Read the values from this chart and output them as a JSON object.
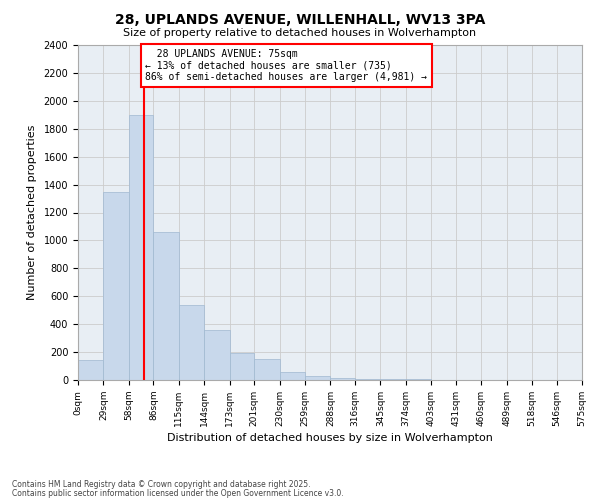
{
  "title": "28, UPLANDS AVENUE, WILLENHALL, WV13 3PA",
  "subtitle": "Size of property relative to detached houses in Wolverhampton",
  "xlabel": "Distribution of detached houses by size in Wolverhampton",
  "ylabel": "Number of detached properties",
  "bar_color": "#c8d8eb",
  "bar_edge_color": "#a0b8d0",
  "property_line_x": 75,
  "annotation_title": "28 UPLANDS AVENUE: 75sqm",
  "annotation_line1": "← 13% of detached houses are smaller (735)",
  "annotation_line2": "86% of semi-detached houses are larger (4,981) →",
  "footer_line1": "Contains HM Land Registry data © Crown copyright and database right 2025.",
  "footer_line2": "Contains public sector information licensed under the Open Government Licence v3.0.",
  "bins": [
    0,
    29,
    58,
    86,
    115,
    144,
    173,
    201,
    230,
    259,
    288,
    316,
    345,
    374,
    403,
    431,
    460,
    489,
    518,
    546,
    575
  ],
  "bin_labels": [
    "0sqm",
    "29sqm",
    "58sqm",
    "86sqm",
    "115sqm",
    "144sqm",
    "173sqm",
    "201sqm",
    "230sqm",
    "259sqm",
    "288sqm",
    "316sqm",
    "345sqm",
    "374sqm",
    "403sqm",
    "431sqm",
    "460sqm",
    "489sqm",
    "518sqm",
    "546sqm",
    "575sqm"
  ],
  "values": [
    140,
    1350,
    1900,
    1060,
    540,
    360,
    190,
    150,
    55,
    30,
    15,
    10,
    5,
    5,
    3,
    0,
    2,
    0,
    0,
    0
  ],
  "ylim": [
    0,
    2400
  ],
  "yticks": [
    0,
    200,
    400,
    600,
    800,
    1000,
    1200,
    1400,
    1600,
    1800,
    2000,
    2200,
    2400
  ],
  "background_color": "#ffffff",
  "grid_color": "#cccccc"
}
